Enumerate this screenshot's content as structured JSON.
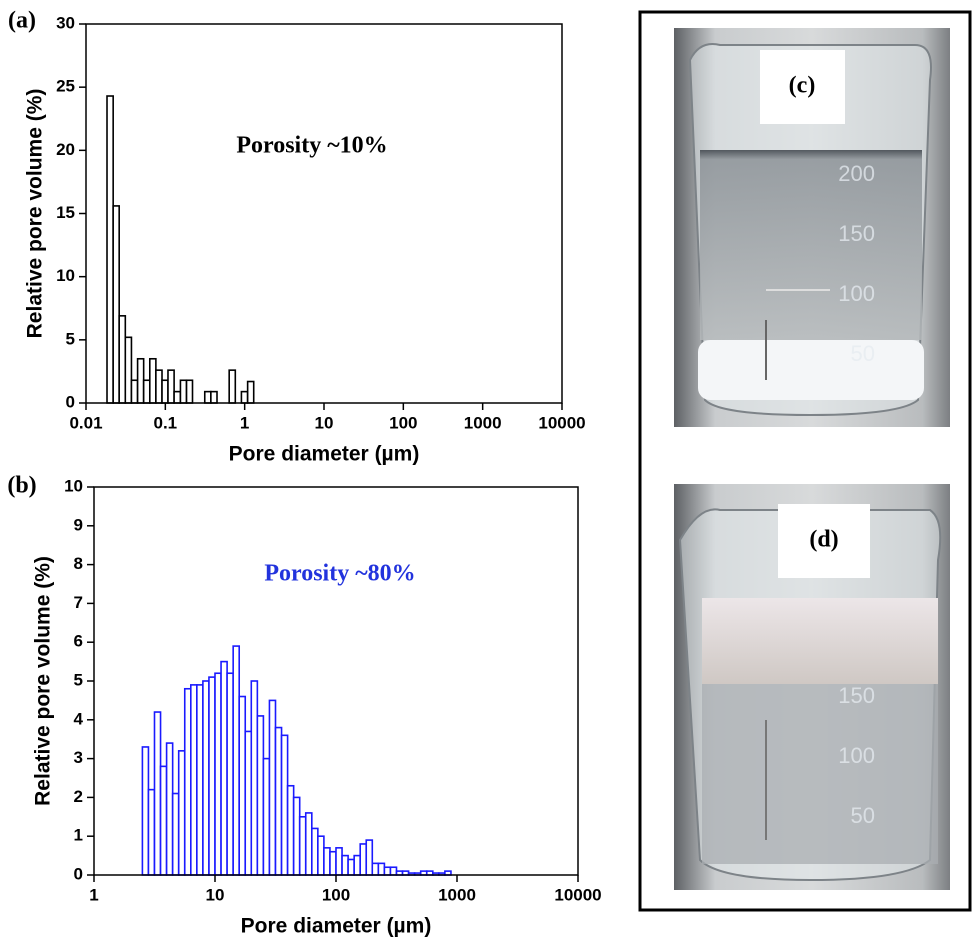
{
  "chart_data": [
    {
      "type": "histogram",
      "panel_label": "(a)",
      "annotation": "Porosity ~10%",
      "annotation_color": "#000000",
      "x_label": "Pore diameter (µm)",
      "y_label": "Relative pore volume (%)",
      "color": "#000000",
      "xscale": "log",
      "xlim": [
        0.01,
        10000
      ],
      "xticks": [
        0.01,
        0.1,
        1,
        10,
        100,
        1000,
        10000
      ],
      "ylim": [
        0,
        30
      ],
      "yticks": [
        0,
        5,
        10,
        15,
        20,
        25,
        30
      ],
      "bins": [
        0.0184,
        0.022,
        0.0262,
        0.0313,
        0.0374,
        0.0447,
        0.0533,
        0.0637,
        0.076,
        0.0908,
        0.108,
        0.129,
        0.155,
        0.185,
        0.22,
        0.263,
        0.314,
        0.375,
        0.448,
        0.535,
        0.638,
        0.762,
        0.91,
        1.09,
        1.3
      ],
      "values": [
        24.3,
        15.6,
        6.9,
        5.2,
        1.8,
        3.5,
        1.8,
        3.5,
        2.6,
        1.8,
        2.6,
        0.9,
        1.8,
        1.8,
        0,
        0,
        0.9,
        0.9,
        0,
        0,
        2.6,
        0,
        0.9,
        1.7
      ]
    },
    {
      "type": "histogram",
      "panel_label": "(b)",
      "annotation": "Porosity ~80%",
      "annotation_color": "#2233dd",
      "x_label": "Pore diameter (µm)",
      "y_label": "Relative pore volume (%)",
      "color": "#1a1aff",
      "xscale": "log",
      "xlim": [
        1,
        10000
      ],
      "xticks": [
        1,
        10,
        100,
        1000,
        10000
      ],
      "ylim": [
        0,
        10
      ],
      "yticks": [
        0,
        1,
        2,
        3,
        4,
        5,
        6,
        7,
        8,
        9,
        10
      ],
      "bins": [
        2.512,
        2.818,
        3.162,
        3.548,
        3.981,
        4.467,
        5.012,
        5.623,
        6.31,
        7.079,
        7.943,
        8.913,
        10,
        11.22,
        12.59,
        14.13,
        15.85,
        17.78,
        19.95,
        22.39,
        25.12,
        28.18,
        31.62,
        35.48,
        39.81,
        44.67,
        50.12,
        56.23,
        63.1,
        70.79,
        79.43,
        89.13,
        100,
        112.2,
        125.9,
        141.3,
        158.5,
        177.8,
        199.5,
        223.9,
        251.2,
        281.8,
        316.2,
        354.8,
        398.1,
        446.7,
        501.2,
        562.3,
        631,
        707.9,
        794.3,
        891.3
      ],
      "values": [
        3.3,
        2.2,
        4.2,
        2.8,
        3.4,
        2.1,
        3.2,
        4.8,
        4.9,
        4.9,
        5.0,
        5.1,
        5.2,
        5.5,
        5.2,
        5.9,
        4.6,
        3.7,
        5.0,
        4.1,
        3.0,
        4.5,
        3.8,
        3.6,
        2.3,
        2.0,
        1.5,
        1.6,
        1.2,
        1.0,
        0.7,
        0.6,
        0.7,
        0.5,
        0.4,
        0.5,
        0.8,
        0.9,
        0.3,
        0.3,
        0.2,
        0.2,
        0.1,
        0.1,
        0.05,
        0.05,
        0.1,
        0.1,
        0.05,
        0.05,
        0.1
      ]
    }
  ],
  "photos": [
    {
      "label": "(c)",
      "scale": [
        "200",
        "150",
        "100",
        "50"
      ]
    },
    {
      "label": "(d)",
      "scale": [
        "150",
        "100",
        "50"
      ]
    }
  ]
}
